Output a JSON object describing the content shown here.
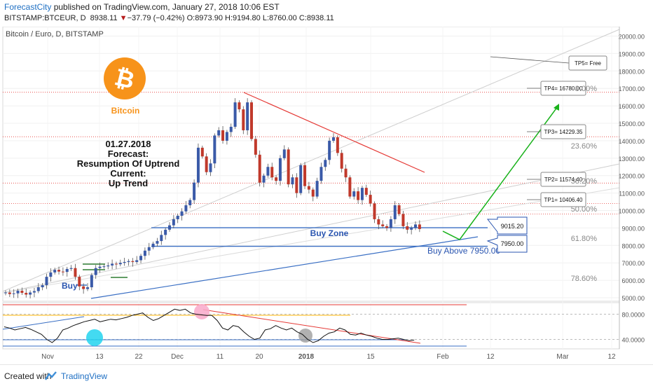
{
  "header": {
    "author": "ForecastCity",
    "published_text": "published on TradingView.com, January 27, 2018 10:06 EST",
    "symbol": "BITSTAMP:BTCEUR, D",
    "last": "8938.11",
    "change_arrow": "▼",
    "change": "−37.79 (−0.42%)",
    "ohlc": "O:8973.90 H:9194.80 L:8760.00 C:8938.11"
  },
  "chart": {
    "title": "Bitcoin / Euro, D, BITSTAMP",
    "logo_label": "Bitcoin",
    "forecast_lines": [
      "01.27.2018",
      "Forecast:",
      "Resumption Of Uptrend",
      "Current:",
      "Up Trend"
    ],
    "buy_zone_label": "Buy Zone",
    "buy_label": "Buy",
    "buy_above_label": "Buy Above 7950.00",
    "zone_top_label": "9015.20",
    "zone_bottom_label": "7950.00",
    "fib_levels": [
      "0.00%",
      "23.60%",
      "38.20%",
      "50.00%",
      "61.80%",
      "78.60%"
    ],
    "tp_labels": [
      "TP5= Free",
      "TP4= 16780.00",
      "TP3= 14229.35",
      "TP2= 11574.40",
      "TP1= 10406.40"
    ],
    "colors": {
      "up": "#3a5aa8",
      "down": "#c0392b",
      "trend_red": "#e53935",
      "trend_blue": "#3a6fc4",
      "arrow_green": "#19b21b",
      "fib_red": "#e53935",
      "logo_orange": "#f7931a"
    }
  },
  "chart_data": [
    {
      "type": "line",
      "title": "Bitcoin / Euro, D, BITSTAMP",
      "xlabel": "",
      "ylabel": "",
      "y_ticks": [
        5000,
        6000,
        7000,
        8000,
        9000,
        10000,
        11000,
        12000,
        13000,
        14000,
        15000,
        16000,
        17000,
        18000,
        19000,
        20000
      ],
      "y_tick_labels": [
        "5000.00",
        "6000.00",
        "7000.00",
        "8000.00",
        "9000.00",
        "10000.00",
        "11000.00",
        "12000.00",
        "13000.00",
        "14000.00",
        "15000.00",
        "16000.00",
        "17000.00",
        "18000.00",
        "19000.00",
        "20000.00"
      ],
      "ylim": [
        4600,
        20200
      ],
      "x_tick_labels": [
        "Nov",
        "13",
        "22",
        "Dec",
        "11",
        "20",
        "2018",
        "15",
        "Feb",
        "12",
        "Mar",
        "12"
      ],
      "close": [
        5300,
        5210,
        5250,
        5400,
        5280,
        5180,
        5300,
        5380,
        5600,
        5720,
        6200,
        6450,
        6600,
        6500,
        6480,
        6650,
        6700,
        6200,
        5650,
        5500,
        5600,
        6300,
        6700,
        6780,
        6800,
        6850,
        6950,
        6920,
        7000,
        7050,
        7100,
        7050,
        7150,
        7400,
        7700,
        7900,
        8100,
        8250,
        8600,
        8900,
        9150,
        9500,
        9700,
        9950,
        10300,
        10600,
        11600,
        13600,
        13100,
        12200,
        12700,
        14300,
        14600,
        14000,
        14500,
        14800,
        16200,
        15800,
        14600,
        16200,
        14100,
        13200,
        11600,
        12000,
        12500,
        11900,
        11700,
        13000,
        13500,
        11500,
        11900,
        11000,
        12600,
        11400,
        11200,
        10800,
        11700,
        12500,
        12900,
        14000,
        14200,
        13300,
        12400,
        11900,
        10800,
        11100,
        10600,
        11300,
        10900,
        10400,
        9500,
        9200,
        9100,
        9000,
        9500,
        10300,
        9800,
        9100,
        8900,
        9000,
        9200,
        8938
      ],
      "rsi": [
        60,
        58,
        55,
        57,
        59,
        56,
        52,
        48,
        40,
        35,
        42,
        55,
        58,
        62,
        65,
        68,
        70,
        72,
        68,
        70,
        72,
        71,
        73,
        75,
        78,
        80,
        82,
        75,
        70,
        73,
        78,
        83,
        88,
        86,
        88,
        82,
        80,
        79,
        78,
        78,
        70,
        58,
        55,
        62,
        60,
        52,
        45,
        40,
        42,
        55,
        57,
        62,
        58,
        55,
        58,
        52,
        48,
        40,
        35,
        38,
        45,
        50,
        52,
        58,
        55,
        48,
        47,
        50,
        47,
        45,
        42,
        40,
        40,
        41,
        42,
        40,
        38,
        39
      ],
      "rsi_y_ticks": [
        40,
        80
      ],
      "rsi_y_tick_labels": [
        "40.0000",
        "80.0000"
      ],
      "horizontal_levels": [
        9015.2,
        7950.0
      ],
      "targets": [
        10406.4,
        11574.4,
        14229.35,
        16780.0
      ]
    }
  ]
}
